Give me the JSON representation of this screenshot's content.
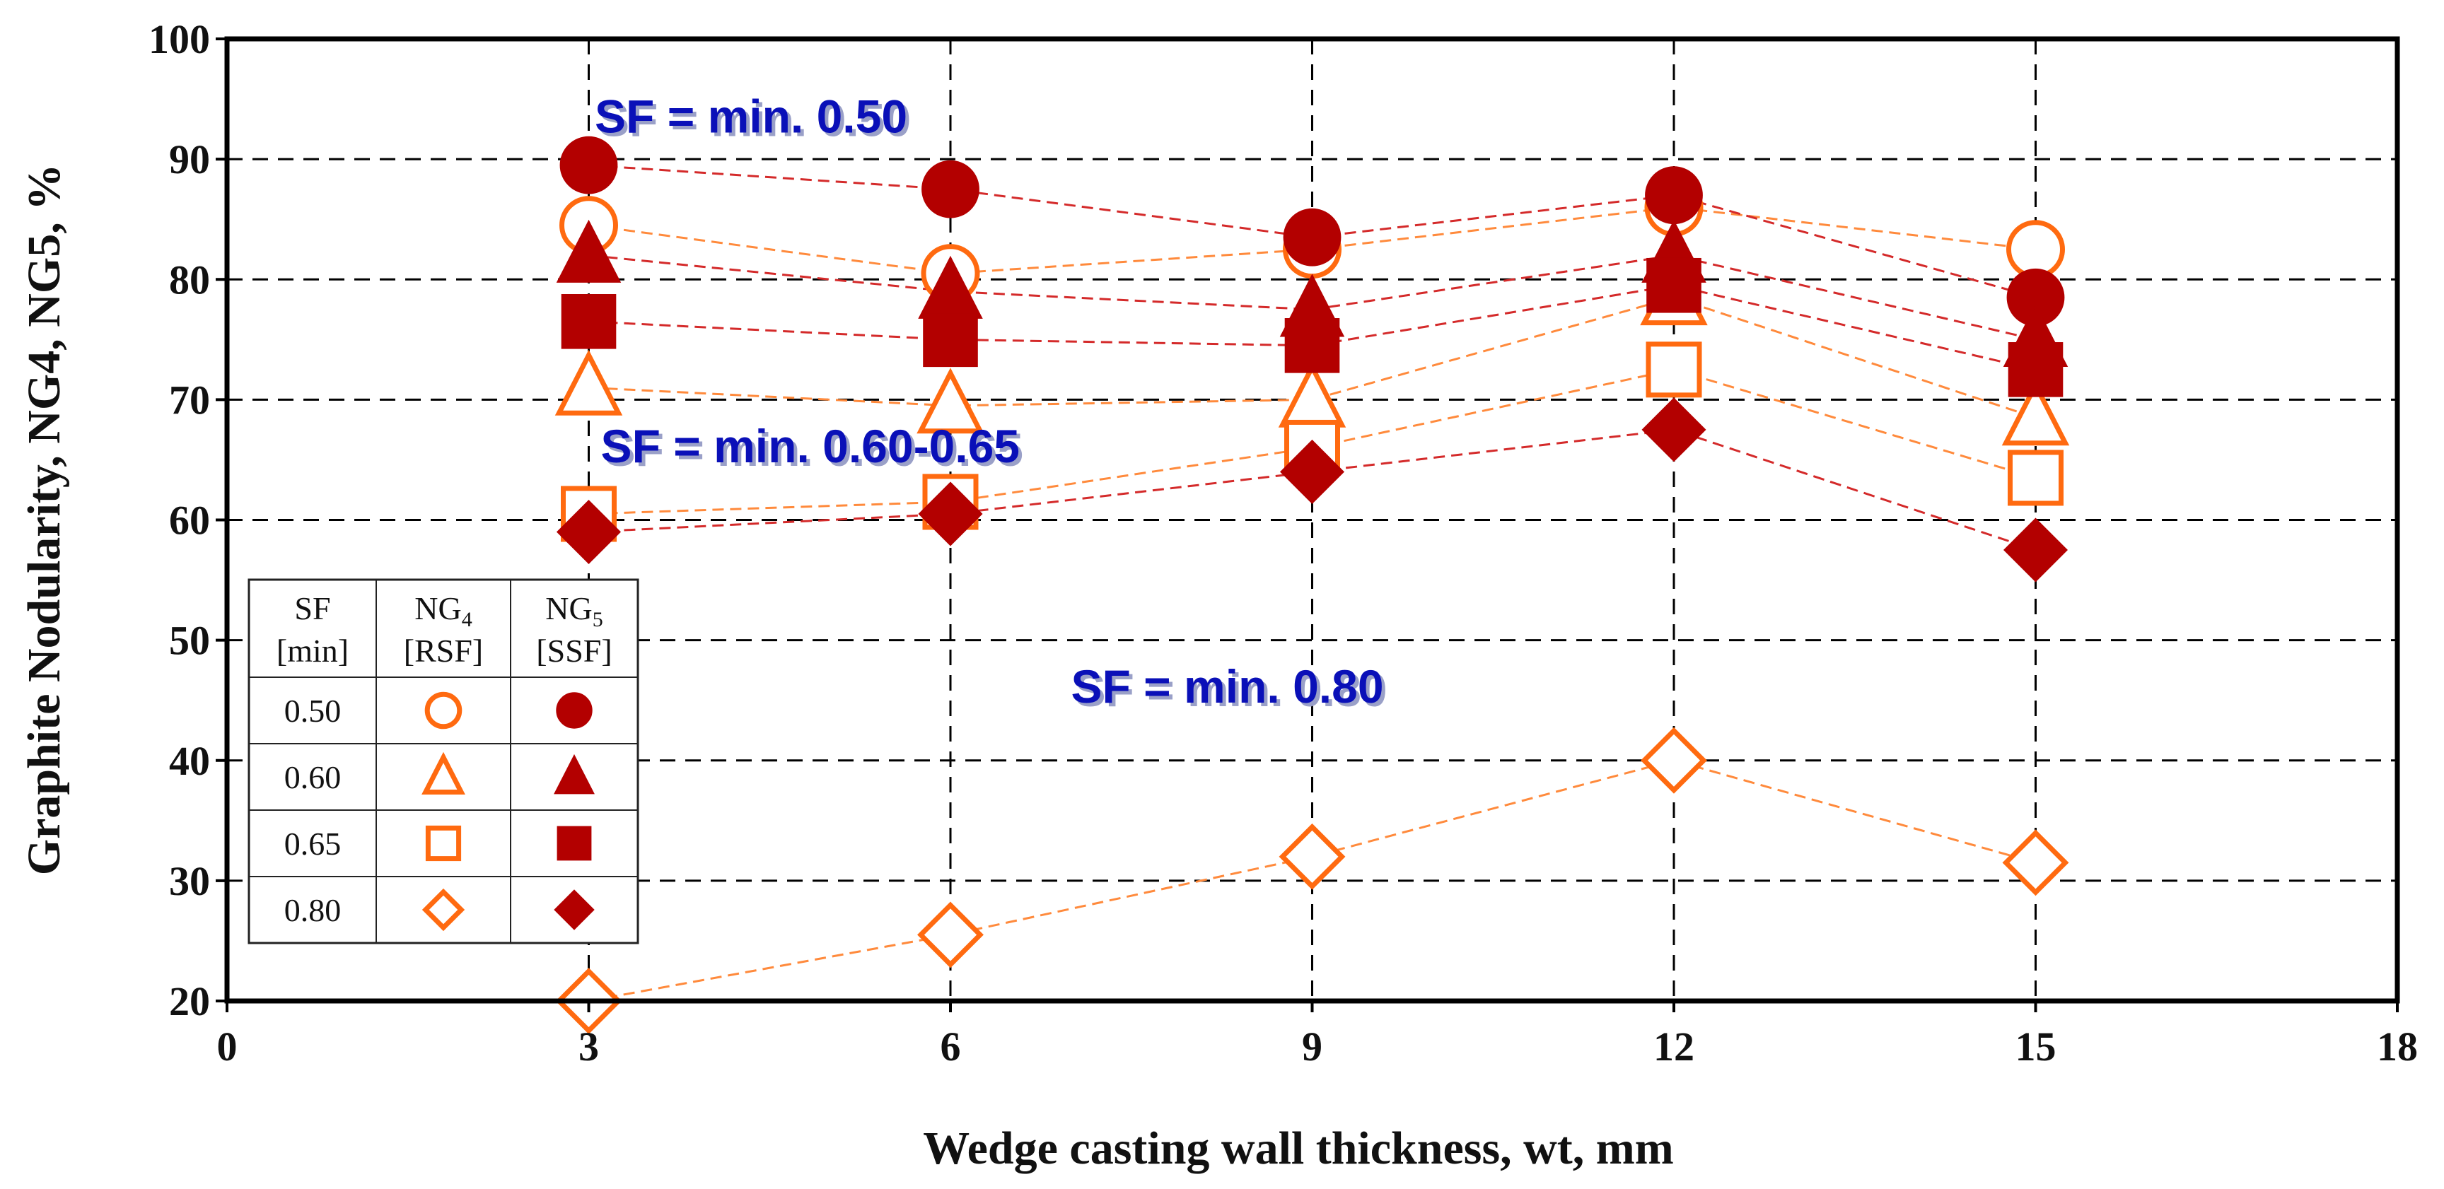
{
  "chart_data": {
    "type": "scatter",
    "title": "",
    "xlabel": "Wedge casting wall thickness, wt, mm",
    "ylabel": "Graphite  Nodularity,  NG4, NG5, %",
    "xlim": [
      0,
      18
    ],
    "ylim": [
      20,
      100
    ],
    "x_ticks": [
      "0",
      "3",
      "6",
      "9",
      "12",
      "15",
      "18"
    ],
    "y_ticks": [
      "20",
      "30",
      "40",
      "50",
      "60",
      "70",
      "80",
      "90",
      "100"
    ],
    "grid": true,
    "x": [
      3,
      6,
      9,
      12,
      15
    ],
    "colors": {
      "rsf": "#ff6a10",
      "ssf": "#b30000",
      "rsf_line": "#ff8a3c",
      "ssf_line": "#d42a2a",
      "annotation": "#0a10b8"
    },
    "series": [
      {
        "name": "NG4 [RSF] SF 0.50",
        "sf": "0.50",
        "type": "RSF",
        "marker": "circle",
        "values": [
          84.5,
          80.5,
          82.5,
          86,
          82.5
        ]
      },
      {
        "name": "NG5 [SSF] SF 0.50",
        "sf": "0.50",
        "type": "SSF",
        "marker": "circle",
        "values": [
          89.5,
          87.5,
          83.5,
          87,
          78.5
        ]
      },
      {
        "name": "NG4 [RSF] SF 0.60",
        "sf": "0.60",
        "type": "RSF",
        "marker": "triangle",
        "values": [
          71,
          69.5,
          70,
          78.5,
          68.5
        ]
      },
      {
        "name": "NG5 [SSF] SF 0.60",
        "sf": "0.60",
        "type": "SSF",
        "marker": "triangle",
        "values": [
          82,
          79,
          77.5,
          82,
          75
        ]
      },
      {
        "name": "NG4 [RSF] SF 0.65",
        "sf": "0.65",
        "type": "RSF",
        "marker": "square",
        "values": [
          60.5,
          61.5,
          66,
          72.5,
          63.5
        ]
      },
      {
        "name": "NG5 [SSF] SF 0.65",
        "sf": "0.65",
        "type": "SSF",
        "marker": "square",
        "values": [
          76.5,
          75,
          74.5,
          79.5,
          72.5
        ]
      },
      {
        "name": "NG4 [RSF] SF 0.80",
        "sf": "0.80",
        "type": "RSF",
        "marker": "diamond",
        "values": [
          20,
          25.5,
          32,
          40,
          31.5
        ]
      },
      {
        "name": "NG5 [SSF] SF 0.80",
        "sf": "0.80",
        "type": "SSF",
        "marker": "diamond",
        "values": [
          59,
          60.5,
          64,
          67.5,
          57.5
        ]
      }
    ],
    "annotations": [
      {
        "text": "SF = min. 0.50",
        "x": 3.05,
        "y": 92.2
      },
      {
        "text": "SF = min. 0.60-0.65",
        "x": 3.1,
        "y": 64.8
      },
      {
        "text": "SF = min. 0.80",
        "x": 7.0,
        "y": 44.8
      }
    ],
    "legend": {
      "position": "lower-left",
      "headers": [
        {
          "main": "SF",
          "sub": "",
          "sub2": "[min]"
        },
        {
          "main": "NG",
          "sub": "4",
          "sub2": "[RSF]"
        },
        {
          "main": "NG",
          "sub": "5",
          "sub2": "[SSF]"
        }
      ],
      "rows": [
        {
          "sf": "0.50",
          "marker": "circle"
        },
        {
          "sf": "0.60",
          "marker": "triangle"
        },
        {
          "sf": "0.65",
          "marker": "square"
        },
        {
          "sf": "0.80",
          "marker": "diamond"
        }
      ]
    }
  }
}
